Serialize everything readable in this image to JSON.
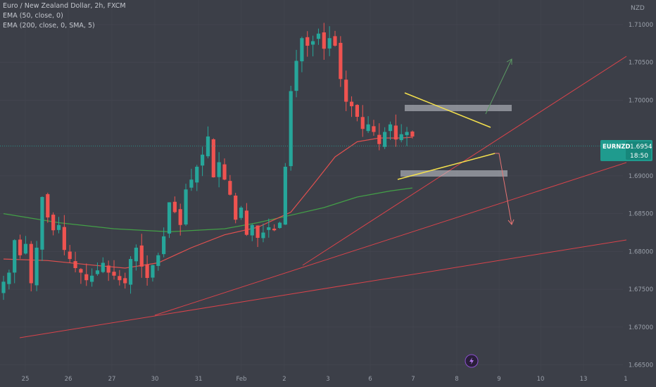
{
  "header": {
    "title": "Euro / New Zealand Dollar, 2h, FXCM",
    "indicators": [
      "EMA (50, close, 0)",
      "EMA (200, close, 0, SMA, 5)"
    ]
  },
  "currency_label": "NZD",
  "price_tag": {
    "symbol": "EURNZD",
    "price": "1.69541",
    "countdown": "18:50"
  },
  "colors": {
    "background": "#3c3f48",
    "up": "#26a69a",
    "down": "#ef5350",
    "ema50": "#e0504f",
    "ema200": "#43a047",
    "pattern": "#f4e04d",
    "zone": "#c9ccd3",
    "trendline": "#d9434b",
    "arrow_up": "#5b9a63",
    "arrow_down": "#e57373"
  },
  "chart_data": {
    "type": "candlestick",
    "x_tick_labels": [
      "25",
      "26",
      "27",
      "30",
      "31",
      "Feb",
      "2",
      "3",
      "6",
      "7",
      "8",
      "9",
      "10",
      "13",
      "1"
    ],
    "y_tick_labels": [
      "1.71000",
      "1.70500",
      "1.70000",
      "1.69000",
      "1.68500",
      "1.68000",
      "1.67500",
      "1.67000",
      "1.66500"
    ],
    "y_ticks": [
      1.71,
      1.705,
      1.7,
      1.69,
      1.685,
      1.68,
      1.675,
      1.67,
      1.665
    ],
    "ylim": [
      1.6645,
      1.7125
    ],
    "last_price": 1.69541,
    "ohlc_anchor_closes": [
      1.676,
      1.6772,
      1.6815,
      1.6795,
      1.681,
      1.6758,
      1.6805,
      1.6872,
      1.6845,
      1.6828,
      1.6835,
      1.6802,
      1.679,
      1.6778,
      1.6772,
      1.6762,
      1.6768,
      1.6775,
      1.6785,
      1.6772,
      1.6768,
      1.6762,
      1.6758,
      1.679,
      1.6805,
      1.678,
      1.6765,
      1.6782,
      1.6795,
      1.682,
      1.6865,
      1.6852,
      1.6835,
      1.6882,
      1.6895,
      1.6912,
      1.6928,
      1.6952,
      1.6898,
      1.6918,
      1.6895,
      1.6875,
      1.6842,
      1.6858,
      1.6822,
      1.6835,
      1.6818,
      1.6825,
      1.6832,
      1.6828,
      1.6838,
      1.6912,
      1.7012,
      1.7052,
      1.7082,
      1.7072,
      1.7078,
      1.7088,
      1.7068,
      1.7082,
      1.7072,
      1.7028,
      1.6998,
      1.6992,
      1.6978,
      1.6962,
      1.6968,
      1.6958,
      1.6942,
      1.6958,
      1.6968,
      1.6948,
      1.6955,
      1.6958,
      1.6952
    ],
    "ema50": [
      [
        0,
        1.679
      ],
      [
        8,
        1.6788
      ],
      [
        16,
        1.6782
      ],
      [
        22,
        1.6778
      ],
      [
        28,
        1.6785
      ],
      [
        34,
        1.6805
      ],
      [
        40,
        1.6822
      ],
      [
        46,
        1.6832
      ],
      [
        52,
        1.6852
      ],
      [
        56,
        1.6888
      ],
      [
        60,
        1.6925
      ],
      [
        64,
        1.6945
      ],
      [
        68,
        1.695
      ],
      [
        72,
        1.695
      ],
      [
        74,
        1.6951
      ]
    ],
    "ema200": [
      [
        0,
        1.685
      ],
      [
        10,
        1.6838
      ],
      [
        20,
        1.683
      ],
      [
        30,
        1.6826
      ],
      [
        40,
        1.683
      ],
      [
        46,
        1.6838
      ],
      [
        52,
        1.6848
      ],
      [
        58,
        1.6858
      ],
      [
        64,
        1.6872
      ],
      [
        70,
        1.688
      ],
      [
        74,
        1.6884
      ]
    ]
  }
}
